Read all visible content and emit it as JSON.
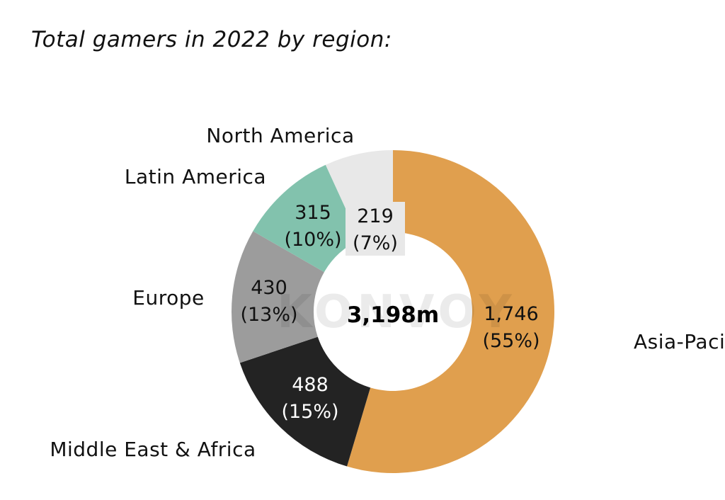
{
  "title": "Total gamers in 2022 by region:",
  "chart_data": {
    "type": "pie",
    "variant": "donut",
    "title": "Total gamers in 2022 by region:",
    "center_label": "3,198m",
    "total": 3198,
    "unit": "m",
    "start": "top, clockwise",
    "slices": [
      {
        "name": "Asia-Pacific",
        "value": 1746,
        "value_label": "1,746",
        "pct_label": "(55%)",
        "color": "#E09F4E",
        "text_color": "#111111"
      },
      {
        "name": "Middle East & Africa",
        "value": 488,
        "value_label": "488",
        "pct_label": "(15%)",
        "color": "#232323",
        "text_color": "#ffffff"
      },
      {
        "name": "Europe",
        "value": 430,
        "value_label": "430",
        "pct_label": "(13%)",
        "color": "#9C9C9C",
        "text_color": "#111111"
      },
      {
        "name": "Latin America",
        "value": 315,
        "value_label": "315",
        "pct_label": "(10%)",
        "color": "#82C2AD",
        "text_color": "#111111"
      },
      {
        "name": "North America",
        "value": 219,
        "value_label": "219",
        "pct_label": "(7%)",
        "color": "#E8E8E8",
        "text_color": "#111111"
      }
    ],
    "watermark": "KONVOY"
  }
}
